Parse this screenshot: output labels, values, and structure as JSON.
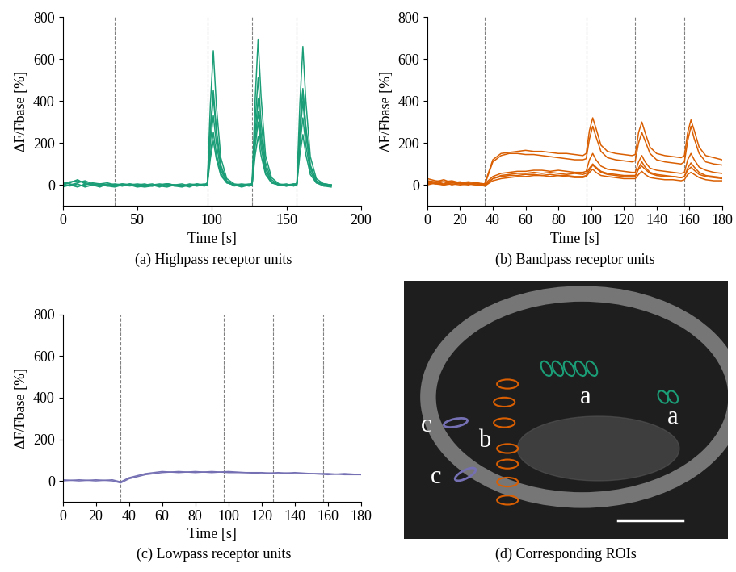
{
  "chart_data": [
    {
      "type": "line",
      "title": "(a) Highpass receptor units",
      "x_label": "Time [s]",
      "y_label": "ΔF/Fbase [%]",
      "color": "#1b9e77",
      "line_style": "solid",
      "xlim": [
        0,
        200
      ],
      "ylim": [
        -100,
        800
      ],
      "xticks": [
        0,
        50,
        100,
        150,
        200
      ],
      "yticks": [
        0,
        200,
        400,
        600,
        800
      ],
      "stimulus_times": [
        35,
        97,
        127,
        157
      ],
      "x": [
        0,
        5,
        10,
        15,
        20,
        25,
        30,
        35,
        40,
        45,
        50,
        55,
        60,
        65,
        70,
        75,
        80,
        85,
        90,
        95,
        97,
        99,
        101,
        103,
        106,
        110,
        115,
        120,
        125,
        127,
        129,
        131,
        133,
        136,
        140,
        145,
        150,
        155,
        157,
        159,
        161,
        163,
        166,
        170,
        175,
        180
      ],
      "series": [
        {
          "values": [
            5,
            15,
            20,
            10,
            5,
            0,
            -5,
            0,
            5,
            0,
            -5,
            -10,
            -5,
            0,
            5,
            -5,
            -10,
            0,
            -5,
            0,
            10,
            380,
            640,
            380,
            130,
            30,
            5,
            0,
            -5,
            10,
            400,
            695,
            420,
            140,
            35,
            5,
            0,
            -5,
            10,
            390,
            660,
            400,
            135,
            30,
            5,
            0
          ]
        },
        {
          "values": [
            0,
            10,
            25,
            5,
            0,
            -10,
            5,
            0,
            -5,
            5,
            0,
            -5,
            0,
            -10,
            5,
            0,
            -5,
            5,
            0,
            -5,
            10,
            270,
            450,
            270,
            95,
            20,
            0,
            -5,
            0,
            5,
            300,
            510,
            300,
            105,
            25,
            0,
            -5,
            0,
            5,
            275,
            460,
            280,
            95,
            20,
            0,
            -5
          ]
        },
        {
          "values": [
            -10,
            0,
            10,
            20,
            5,
            0,
            -5,
            -10,
            0,
            5,
            -5,
            0,
            5,
            -5,
            -10,
            0,
            5,
            -5,
            0,
            5,
            0,
            250,
            420,
            250,
            85,
            15,
            -5,
            0,
            5,
            0,
            245,
            410,
            245,
            85,
            15,
            0,
            -5,
            5,
            0,
            270,
            450,
            270,
            90,
            20,
            -5,
            0
          ]
        },
        {
          "values": [
            10,
            5,
            -5,
            0,
            10,
            5,
            0,
            -5,
            5,
            0,
            -10,
            -5,
            0,
            5,
            0,
            -5,
            0,
            -10,
            5,
            0,
            5,
            200,
            330,
            200,
            70,
            15,
            0,
            5,
            0,
            5,
            210,
            350,
            210,
            75,
            15,
            0,
            0,
            5,
            5,
            240,
            400,
            240,
            80,
            15,
            5,
            0
          ]
        },
        {
          "values": [
            0,
            -5,
            5,
            -10,
            0,
            5,
            10,
            0,
            -5,
            0,
            5,
            0,
            -5,
            0,
            5,
            0,
            -5,
            0,
            -5,
            0,
            5,
            150,
            250,
            150,
            55,
            10,
            0,
            -10,
            0,
            5,
            180,
            300,
            180,
            60,
            10,
            0,
            -5,
            0,
            0,
            190,
            320,
            190,
            65,
            10,
            -5,
            -10
          ]
        },
        {
          "values": [
            -5,
            0,
            -10,
            5,
            0,
            -5,
            0,
            5,
            0,
            -5,
            0,
            5,
            -5,
            0,
            5,
            0,
            -5,
            0,
            5,
            -5,
            0,
            125,
            210,
            125,
            45,
            10,
            0,
            0,
            -5,
            0,
            140,
            230,
            140,
            50,
            10,
            0,
            5,
            -5,
            5,
            145,
            240,
            145,
            50,
            10,
            5,
            0
          ]
        }
      ]
    },
    {
      "type": "line",
      "title": "(b) Bandpass receptor units",
      "x_label": "Time [s]",
      "y_label": "ΔF/Fbase [%]",
      "color": "#d95f02",
      "line_style": "solid",
      "xlim": [
        0,
        180
      ],
      "ylim": [
        -100,
        800
      ],
      "xticks": [
        0,
        20,
        40,
        60,
        80,
        100,
        120,
        140,
        160,
        180
      ],
      "yticks": [
        0,
        200,
        400,
        600,
        800
      ],
      "stimulus_times": [
        35,
        97,
        127,
        157
      ],
      "x": [
        0,
        5,
        10,
        15,
        20,
        25,
        30,
        35,
        40,
        45,
        50,
        55,
        60,
        65,
        70,
        75,
        80,
        85,
        90,
        95,
        97,
        99,
        101,
        103,
        106,
        110,
        115,
        120,
        125,
        127,
        129,
        131,
        133,
        136,
        140,
        145,
        150,
        155,
        157,
        159,
        161,
        163,
        166,
        170,
        175,
        180
      ],
      "series": [
        {
          "values": [
            30,
            20,
            15,
            20,
            10,
            15,
            10,
            5,
            120,
            150,
            155,
            160,
            165,
            160,
            160,
            155,
            150,
            150,
            145,
            140,
            150,
            260,
            320,
            270,
            190,
            160,
            150,
            145,
            140,
            145,
            250,
            300,
            250,
            180,
            150,
            140,
            135,
            130,
            140,
            250,
            310,
            260,
            180,
            140,
            130,
            120
          ]
        },
        {
          "values": [
            20,
            15,
            25,
            10,
            15,
            5,
            10,
            0,
            110,
            140,
            150,
            150,
            145,
            145,
            140,
            135,
            130,
            125,
            120,
            120,
            125,
            220,
            280,
            230,
            160,
            130,
            120,
            115,
            110,
            115,
            200,
            250,
            210,
            150,
            120,
            110,
            105,
            100,
            110,
            210,
            280,
            220,
            150,
            110,
            100,
            95
          ]
        },
        {
          "values": [
            10,
            5,
            15,
            0,
            10,
            5,
            0,
            5,
            40,
            55,
            60,
            65,
            65,
            70,
            70,
            65,
            70,
            65,
            60,
            60,
            65,
            120,
            150,
            120,
            90,
            75,
            70,
            65,
            60,
            60,
            110,
            140,
            110,
            80,
            70,
            65,
            60,
            55,
            60,
            120,
            150,
            120,
            85,
            70,
            60,
            55
          ]
        },
        {
          "values": [
            0,
            10,
            5,
            15,
            5,
            0,
            10,
            0,
            30,
            45,
            50,
            55,
            55,
            60,
            55,
            60,
            55,
            50,
            55,
            50,
            55,
            80,
            100,
            85,
            65,
            55,
            50,
            45,
            45,
            45,
            75,
            90,
            75,
            55,
            45,
            40,
            40,
            35,
            40,
            70,
            85,
            70,
            50,
            40,
            35,
            30
          ]
        },
        {
          "values": [
            15,
            5,
            0,
            10,
            5,
            10,
            5,
            -5,
            20,
            30,
            35,
            40,
            40,
            45,
            45,
            40,
            45,
            40,
            35,
            35,
            40,
            60,
            75,
            60,
            45,
            40,
            35,
            30,
            30,
            30,
            50,
            65,
            50,
            35,
            30,
            25,
            25,
            20,
            25,
            50,
            60,
            50,
            35,
            25,
            20,
            20
          ]
        },
        {
          "values": [
            5,
            10,
            0,
            5,
            0,
            5,
            0,
            -5,
            30,
            40,
            45,
            45,
            50,
            50,
            45,
            50,
            45,
            45,
            40,
            40,
            45,
            70,
            95,
            80,
            60,
            50,
            45,
            40,
            40,
            40,
            80,
            110,
            85,
            60,
            50,
            45,
            40,
            35,
            40,
            80,
            105,
            85,
            60,
            45,
            40,
            35
          ]
        }
      ]
    },
    {
      "type": "line",
      "title": "(c) Lowpass receptor units",
      "x_label": "Time [s]",
      "y_label": "ΔF/Fbase [%]",
      "color": "#7570b3",
      "line_style": "solid",
      "xlim": [
        0,
        180
      ],
      "ylim": [
        -100,
        800
      ],
      "xticks": [
        0,
        20,
        40,
        60,
        80,
        100,
        120,
        140,
        160,
        180
      ],
      "yticks": [
        0,
        200,
        400,
        600,
        800
      ],
      "stimulus_times": [
        35,
        97,
        127,
        157
      ],
      "x": [
        0,
        10,
        20,
        30,
        35,
        40,
        50,
        60,
        70,
        80,
        90,
        100,
        110,
        120,
        130,
        140,
        150,
        160,
        170,
        180
      ],
      "series": [
        {
          "values": [
            5,
            0,
            5,
            0,
            -10,
            10,
            30,
            40,
            45,
            40,
            45,
            40,
            40,
            35,
            40,
            35,
            35,
            35,
            30,
            30
          ]
        },
        {
          "values": [
            0,
            5,
            0,
            5,
            -5,
            15,
            35,
            45,
            40,
            45,
            40,
            45,
            40,
            40,
            35,
            40,
            35,
            30,
            35,
            30
          ]
        }
      ]
    }
  ],
  "image": {
    "title": "(d) Corresponding ROIs",
    "labels": [
      "c",
      "c",
      "b",
      "a",
      "a"
    ]
  }
}
